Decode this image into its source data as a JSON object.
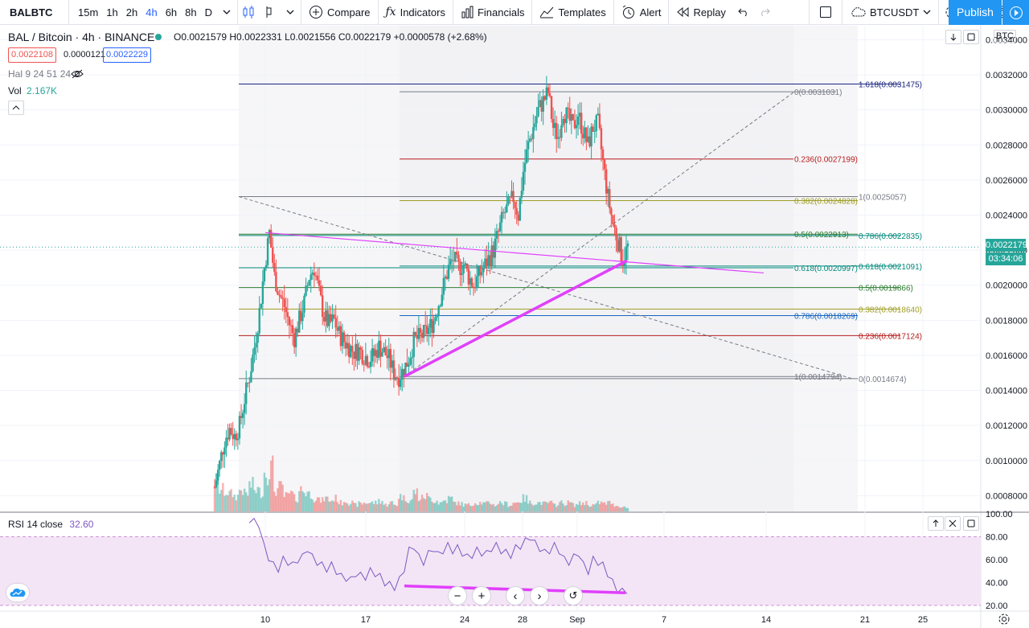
{
  "toolbar": {
    "symbol": "BALBTC",
    "intervals": [
      "15m",
      "1h",
      "2h",
      "4h",
      "6h",
      "8h",
      "D"
    ],
    "active_interval": "4h",
    "compare": "Compare",
    "indicators": "Indicators",
    "financials": "Financials",
    "templates": "Templates",
    "alert": "Alert",
    "replay": "Replay",
    "comparison_symbol": "BTCUSDT",
    "publish": "Publish"
  },
  "legend": {
    "title": "BAL / Bitcoin · 4h · BINANCE",
    "ohlc": "O0.0021579 H0.0022331 L0.0021556 C0.0022179 +0.0000578 (+2.68%)",
    "bid": "0.0022108",
    "spread": "0.0000121",
    "ask": "0.0022229",
    "indicator_hal": "Hal 9 24 51 24",
    "vol_label": "Vol",
    "vol_value": "2.167K",
    "currency": "BTC"
  },
  "rsi": {
    "label": "RSI 14 close",
    "value": "32.60",
    "upper_band": 80,
    "lower_band": 20
  },
  "price_tag": {
    "price": "0.0022179",
    "countdown": "03:34:06"
  },
  "colors": {
    "up": "#26a69a",
    "down": "#ef5350",
    "trend": "#e040fb",
    "rsi_line": "#7e57c2",
    "rsi_band": "#f3e5f5"
  },
  "chart_data": {
    "type": "candlestick",
    "x_ticks": [
      "10",
      "17",
      "24",
      "28",
      "Sep",
      "7",
      "14",
      "21",
      "25"
    ],
    "y_ticks": [
      "0.0034000",
      "0.0032000",
      "0.0030000",
      "0.0028000",
      "0.0026000",
      "0.0024000",
      "0.0022000",
      "0.0020000",
      "0.0018000",
      "0.0016000",
      "0.0014000",
      "0.0012000",
      "0.0010000",
      "0.0008000"
    ],
    "ylim": [
      0.00071,
      0.00348
    ],
    "rsi_ticks": [
      "100.00",
      "80.00",
      "60.00",
      "40.00",
      "20.00"
    ],
    "rsi_ylim": [
      15,
      100
    ],
    "price_path": [
      0.00085,
      0.00098,
      0.00112,
      0.00118,
      0.00114,
      0.0012,
      0.00135,
      0.00148,
      0.00165,
      0.00185,
      0.0021,
      0.0023,
      0.00205,
      0.00195,
      0.00188,
      0.00178,
      0.0017,
      0.0018,
      0.0019,
      0.00205,
      0.0021,
      0.00195,
      0.00182,
      0.00178,
      0.0018,
      0.00172,
      0.00168,
      0.00165,
      0.00162,
      0.00163,
      0.0016,
      0.00158,
      0.0016,
      0.00165,
      0.00162,
      0.00158,
      0.0015,
      0.00148,
      0.00152,
      0.00158,
      0.00168,
      0.0017,
      0.00172,
      0.00175,
      0.0018,
      0.0019,
      0.002,
      0.0021,
      0.00215,
      0.0021,
      0.00212,
      0.00205,
      0.002,
      0.00205,
      0.0021,
      0.00215,
      0.0022,
      0.0023,
      0.0024,
      0.00245,
      0.0025,
      0.0024,
      0.00265,
      0.0028,
      0.0029,
      0.003,
      0.00305,
      0.0031,
      0.0029,
      0.00285,
      0.003,
      0.00295,
      0.0029,
      0.00298,
      0.00288,
      0.0028,
      0.0029,
      0.00292,
      0.0027,
      0.0025,
      0.00235,
      0.00225,
      0.00215,
      0.00222
    ],
    "volume": [
      0.7,
      0.5,
      0.45,
      0.4,
      0.35,
      0.5,
      0.4,
      0.6,
      0.5,
      0.45,
      0.9,
      1.0,
      0.5,
      0.55,
      0.35,
      0.4,
      0.3,
      0.5,
      0.45,
      0.4,
      0.3,
      0.25,
      0.3,
      0.25,
      0.3,
      0.2,
      0.25,
      0.2,
      0.15,
      0.18,
      0.2,
      0.2,
      0.2,
      0.25,
      0.15,
      0.2,
      0.15,
      0.35,
      0.3,
      0.25,
      0.45,
      0.3,
      0.35,
      0.3,
      0.25,
      0.2,
      0.25,
      0.3,
      0.2,
      0.18,
      0.15,
      0.15,
      0.2,
      0.2,
      0.18,
      0.2,
      0.15,
      0.2,
      0.18,
      0.15,
      0.2,
      0.25,
      0.3,
      0.2,
      0.2,
      0.2,
      0.18,
      0.2,
      0.15,
      0.2,
      0.18,
      0.2,
      0.15,
      0.18,
      0.2,
      0.15,
      0.15,
      0.2,
      0.18,
      0.2,
      0.15,
      0.12,
      0.1,
      0.08
    ],
    "rsi_path": [
      92,
      96,
      88,
      72,
      62,
      55,
      52,
      60,
      58,
      55,
      60,
      62,
      70,
      62,
      58,
      55,
      52,
      55,
      50,
      45,
      44,
      42,
      48,
      46,
      45,
      50,
      48,
      45,
      40,
      38,
      36,
      42,
      52,
      68,
      72,
      62,
      58,
      65,
      70,
      64,
      68,
      72,
      68,
      70,
      66,
      62,
      64,
      68,
      66,
      65,
      70,
      72,
      68,
      66,
      64,
      70,
      72,
      76,
      80,
      74,
      70,
      66,
      68,
      72,
      68,
      60,
      58,
      62,
      66,
      55,
      50,
      60,
      58,
      55,
      48,
      40,
      34,
      32,
      33
    ],
    "fib_levels_right": [
      {
        "label": "1.618(0.0031475)",
        "value": 0.0031475,
        "color": "#1a237e"
      },
      {
        "label": "0(0.0031031)",
        "value": 0.0031031,
        "color": "#787b86"
      },
      {
        "label": "0.236(0.0027199)",
        "value": 0.0027199,
        "color": "#b71c1c"
      },
      {
        "label": "0.382(0.0024828)",
        "value": 0.0024828,
        "color": "#9e9d24"
      },
      {
        "label": "1(0.0025057)",
        "value": 0.0025057,
        "color": "#787b86"
      },
      {
        "label": "0.5(0.0022913)",
        "value": 0.0022913,
        "color": "#2e7d32"
      },
      {
        "label": "0.786(0.0022835)",
        "value": 0.0022835,
        "color": "#1565c0"
      },
      {
        "label": "0.618(0.0020997)",
        "value": 0.0020997,
        "color": "#00897b"
      },
      {
        "label": "0.618(0.0021091)",
        "value": 0.0021091,
        "color": "#00897b"
      },
      {
        "label": "0.5(0.0019866)",
        "value": 0.0019866,
        "color": "#2e7d32"
      },
      {
        "label": "0.382(0.0018640)",
        "value": 0.001864,
        "color": "#9e9d24"
      },
      {
        "label": "0.786(0.0018269)",
        "value": 0.0018269,
        "color": "#1565c0"
      },
      {
        "label": "0.236(0.0017124)",
        "value": 0.0017124,
        "color": "#b71c1c"
      },
      {
        "label": "1(0.0014794)",
        "value": 0.0014794,
        "color": "#787b86"
      },
      {
        "label": "0(0.0014674)",
        "value": 0.0014674,
        "color": "#787b86"
      }
    ]
  }
}
